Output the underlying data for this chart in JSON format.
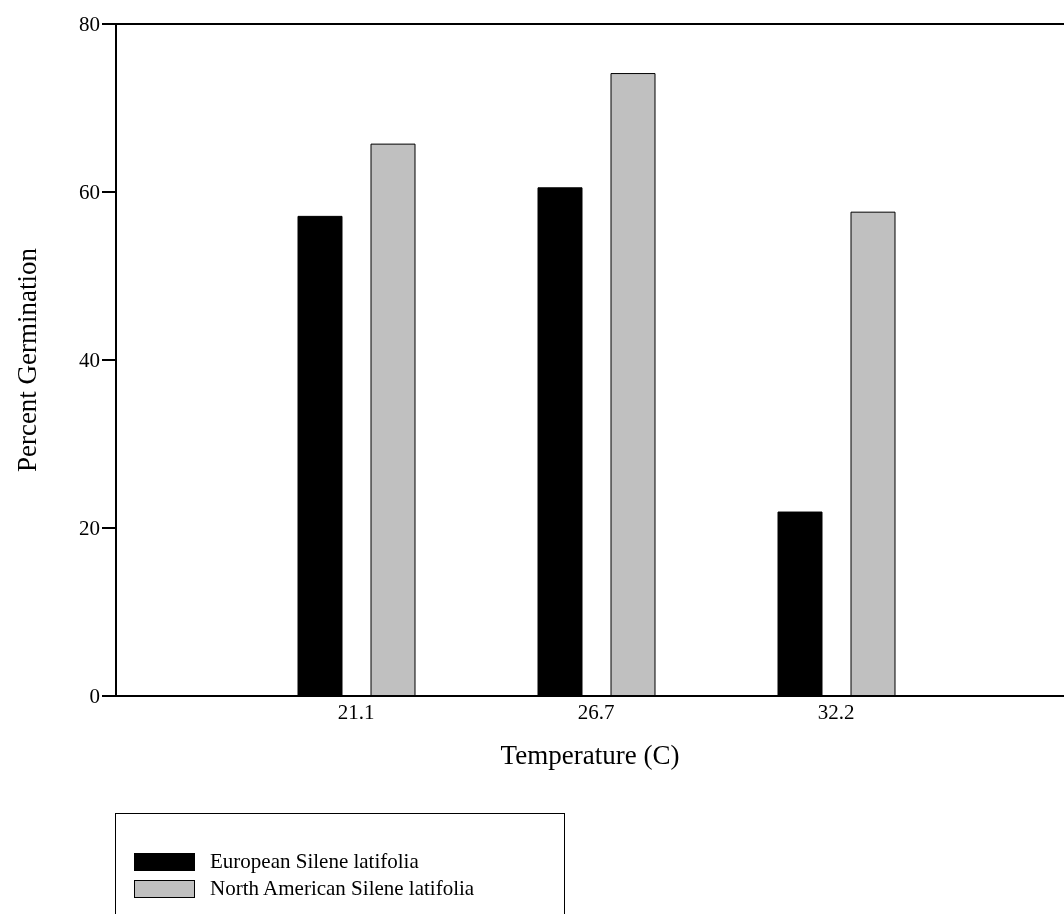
{
  "chart_data": {
    "type": "bar",
    "xlabel": "Temperature (C)",
    "ylabel": "Percent Germination",
    "categories": [
      "21.1",
      "26.7",
      "32.2"
    ],
    "series": [
      {
        "name": "European Silene latifolia",
        "color": "#000000",
        "values": [
          57.1,
          60.5,
          21.9
        ]
      },
      {
        "name": "North American Silene latifolia",
        "color": "#c0c0c0",
        "values": [
          65.7,
          74.1,
          57.6
        ]
      }
    ],
    "ylim": [
      0,
      80
    ],
    "yticks": [
      0,
      20,
      40,
      60,
      80
    ],
    "legend": "bottom left"
  }
}
